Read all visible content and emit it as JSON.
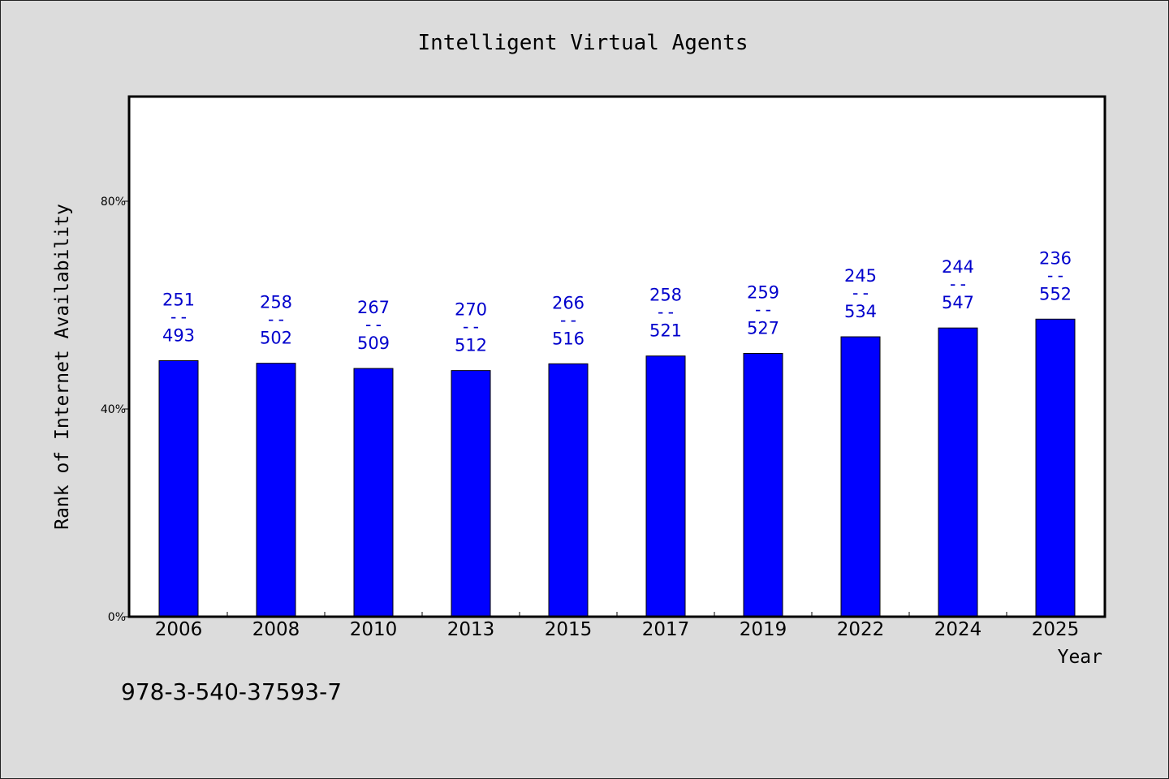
{
  "chart_data": {
    "type": "bar",
    "title": "Intelligent Virtual Agents",
    "xlabel": "Year",
    "ylabel": "Rank of Internet Availability",
    "ylim": [
      0,
      100
    ],
    "yticks": [
      {
        "value": 0,
        "label": "0%"
      },
      {
        "value": 40,
        "label": "40%"
      },
      {
        "value": 80,
        "label": "80%"
      }
    ],
    "categories": [
      "2006",
      "2008",
      "2010",
      "2013",
      "2015",
      "2017",
      "2019",
      "2022",
      "2024",
      "2025"
    ],
    "values": [
      49.3,
      48.8,
      47.8,
      47.4,
      48.7,
      50.2,
      50.7,
      53.9,
      55.6,
      57.3
    ],
    "label_top": [
      "251",
      "258",
      "267",
      "270",
      "266",
      "258",
      "259",
      "245",
      "244",
      "236"
    ],
    "label_sep": "--",
    "label_bottom": [
      "493",
      "502",
      "509",
      "512",
      "516",
      "521",
      "527",
      "534",
      "547",
      "552"
    ],
    "bar_color": "#0000ff",
    "label_color": "#0000cc",
    "grid": false,
    "legend": "none"
  },
  "footer_text": "978-3-540-37593-7"
}
